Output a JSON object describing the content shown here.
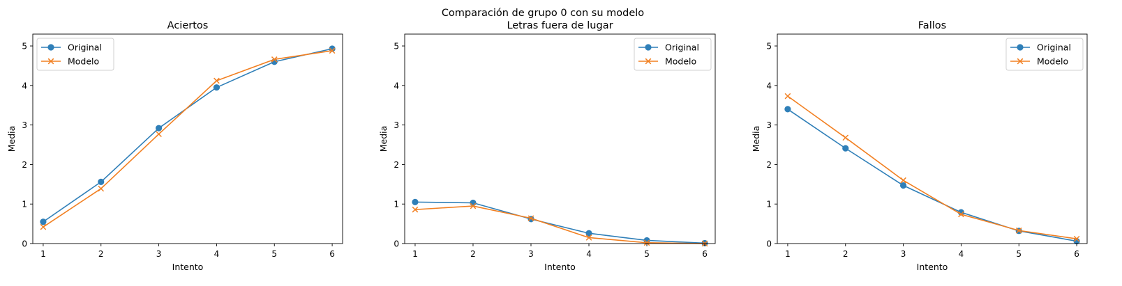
{
  "suptitle": "Comparación de grupo 0 con su modelo",
  "colors": {
    "original": "#2f7fb8",
    "modelo": "#f28022"
  },
  "chart_data": [
    {
      "type": "line",
      "title": "Aciertos",
      "xlabel": "Intento",
      "ylabel": "Media",
      "x": [
        1,
        2,
        3,
        4,
        5,
        6
      ],
      "ylim": [
        0,
        5.3
      ],
      "xticks": [
        "1",
        "2",
        "3",
        "4",
        "5",
        "6"
      ],
      "yticks": [
        "0",
        "1",
        "2",
        "3",
        "4",
        "5"
      ],
      "legend_position": "upper-left",
      "series": [
        {
          "name": "Original",
          "marker": "circle",
          "values": [
            0.55,
            1.56,
            2.92,
            3.95,
            4.6,
            4.93
          ]
        },
        {
          "name": "Modelo",
          "marker": "x",
          "values": [
            0.42,
            1.39,
            2.77,
            4.12,
            4.66,
            4.88
          ]
        }
      ]
    },
    {
      "type": "line",
      "title": "Letras fuera de lugar",
      "xlabel": "Intento",
      "ylabel": "Media",
      "x": [
        1,
        2,
        3,
        4,
        5,
        6
      ],
      "ylim": [
        0,
        5.3
      ],
      "xticks": [
        "1",
        "2",
        "3",
        "4",
        "5",
        "6"
      ],
      "yticks": [
        "0",
        "1",
        "2",
        "3",
        "4",
        "5"
      ],
      "legend_position": "upper-right",
      "series": [
        {
          "name": "Original",
          "marker": "circle",
          "values": [
            1.05,
            1.03,
            0.62,
            0.26,
            0.08,
            0.01
          ]
        },
        {
          "name": "Modelo",
          "marker": "x",
          "values": [
            0.86,
            0.95,
            0.64,
            0.15,
            0.02,
            0.0
          ]
        }
      ]
    },
    {
      "type": "line",
      "title": "Fallos",
      "xlabel": "Intento",
      "ylabel": "Media",
      "x": [
        1,
        2,
        3,
        4,
        5,
        6
      ],
      "ylim": [
        0,
        5.3
      ],
      "xticks": [
        "1",
        "2",
        "3",
        "4",
        "5",
        "6"
      ],
      "yticks": [
        "0",
        "1",
        "2",
        "3",
        "4",
        "5"
      ],
      "legend_position": "upper-right",
      "series": [
        {
          "name": "Original",
          "marker": "circle",
          "values": [
            3.4,
            2.41,
            1.47,
            0.79,
            0.32,
            0.06
          ]
        },
        {
          "name": "Modelo",
          "marker": "x",
          "values": [
            3.73,
            2.68,
            1.6,
            0.74,
            0.33,
            0.12
          ]
        }
      ]
    }
  ]
}
